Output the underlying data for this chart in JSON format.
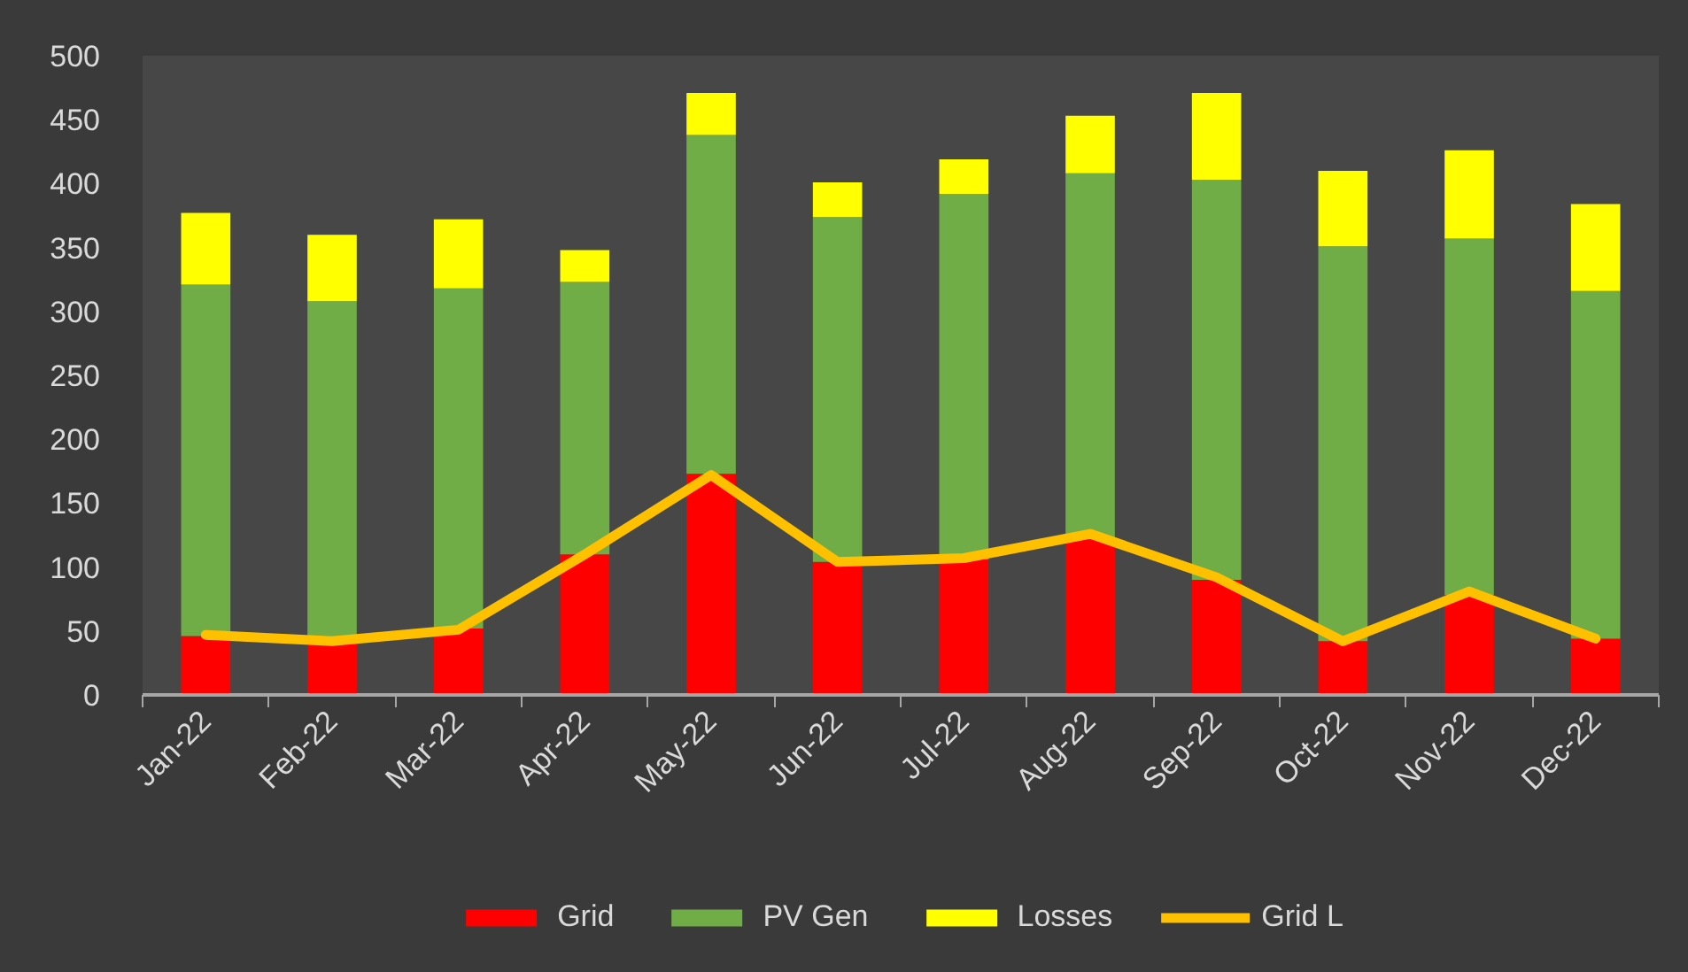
{
  "chart_data": {
    "type": "bar",
    "stacked": true,
    "categories": [
      "Jan-22",
      "Feb-22",
      "Mar-22",
      "Apr-22",
      "May-22",
      "Jun-22",
      "Jul-22",
      "Aug-22",
      "Sep-22",
      "Oct-22",
      "Nov-22",
      "Dec-22"
    ],
    "series": [
      {
        "name": "Grid",
        "color": "#ff0000",
        "values": [
          46,
          40,
          52,
          110,
          173,
          104,
          106,
          122,
          90,
          42,
          78,
          44
        ]
      },
      {
        "name": "PV Gen",
        "color": "#70ad47",
        "values": [
          275,
          268,
          266,
          213,
          265,
          270,
          286,
          286,
          313,
          309,
          279,
          272
        ]
      },
      {
        "name": "Losses",
        "color": "#ffff00",
        "values": [
          56,
          52,
          54,
          25,
          33,
          27,
          27,
          45,
          68,
          59,
          69,
          68
        ]
      },
      {
        "name": "Grid L",
        "type": "line",
        "color": "#ffc000",
        "values": [
          47,
          42,
          51,
          110,
          172,
          104,
          107,
          126,
          92,
          42,
          81,
          44
        ]
      }
    ],
    "ylim": [
      0,
      500
    ],
    "yticks": [
      0,
      50,
      100,
      150,
      200,
      250,
      300,
      350,
      400,
      450,
      500
    ],
    "legend": "bottom"
  }
}
